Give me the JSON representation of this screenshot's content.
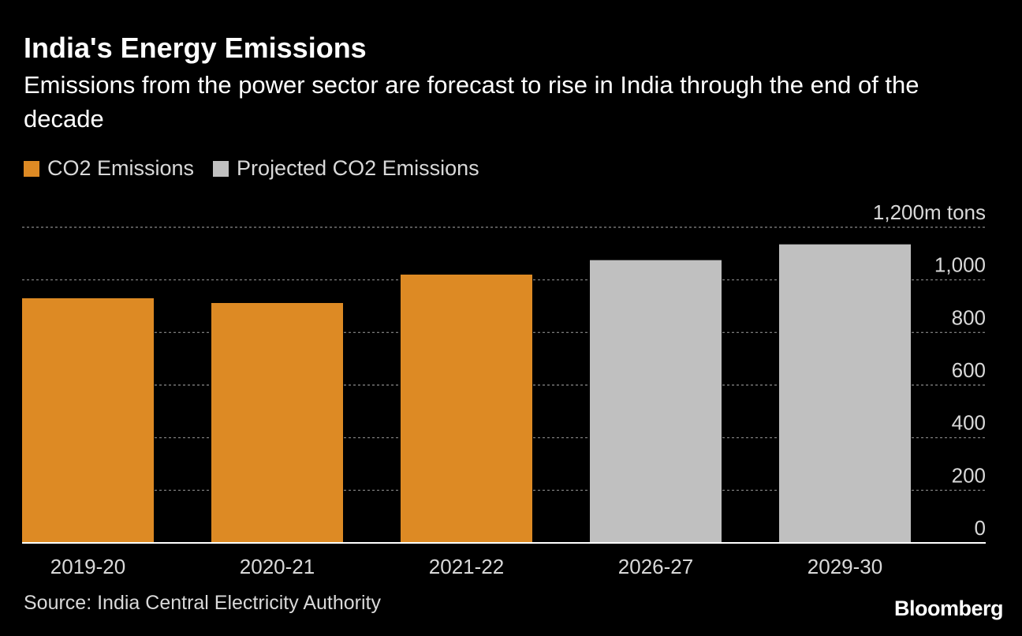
{
  "header": {
    "title": "India's Energy Emissions",
    "subtitle": "Emissions from the power sector are forecast to rise in India through the end of the decade"
  },
  "legend": [
    {
      "label": "CO2 Emissions",
      "color": "#dd8a24"
    },
    {
      "label": "Projected CO2 Emissions",
      "color": "#c0c0c0"
    }
  ],
  "footer": {
    "source": "Source: India Central Electricity Authority",
    "brand": "Bloomberg"
  },
  "chart_data": {
    "type": "bar",
    "categories": [
      "2019-20",
      "2020-21",
      "2021-22",
      "2026-27",
      "2029-30"
    ],
    "values": [
      930,
      912,
      1020,
      1075,
      1135
    ],
    "projected": [
      false,
      false,
      false,
      true,
      true
    ],
    "unit_label": "1,200m tons",
    "ylim": [
      0,
      1200
    ],
    "yticks": [
      0,
      200,
      400,
      600,
      800,
      1000,
      1200
    ],
    "ytick_labels": [
      "0",
      "200",
      "400",
      "600",
      "800",
      "1,000",
      "1,200m tons"
    ],
    "grid": true,
    "axis_position": "right",
    "legend_position": "top-left"
  }
}
